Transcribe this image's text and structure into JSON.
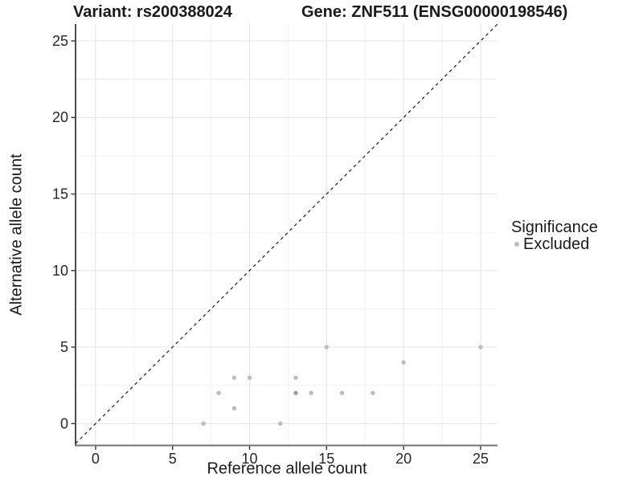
{
  "header": {
    "variant_title": "Variant: rs200388024",
    "gene_title": "Gene: ZNF511 (ENSG00000198546)"
  },
  "axes": {
    "x_label": "Reference allele count",
    "y_label": "Alternative allele count"
  },
  "legend": {
    "title": "Significance",
    "items": [
      {
        "label": "Excluded",
        "color": "#bcbcbc"
      }
    ]
  },
  "style": {
    "background": "#ffffff",
    "grid_major": "#e3e3e3",
    "grid_minor": "#f1f1f1",
    "axis_line_y": "#212121",
    "axis_line_x": "#757575",
    "tick_mark": "#333333",
    "tick_label_color": "#262626",
    "identity_line_color": "#1a1a1a",
    "point_color": "#bcbcbc",
    "point_overlap_color": "#9c9c9c"
  },
  "chart_data": {
    "type": "scatter",
    "title": "Variant: rs200388024   Gene: ZNF511 (ENSG00000198546)",
    "xlabel": "Reference allele count",
    "ylabel": "Alternative allele count",
    "xlim": [
      -1.3,
      26.1
    ],
    "ylim": [
      -1.4,
      26.1
    ],
    "x_ticks": [
      0,
      5,
      10,
      15,
      20,
      25
    ],
    "y_ticks": [
      0,
      5,
      10,
      15,
      20,
      25
    ],
    "x_minor_ticks": [
      2.5,
      7.5,
      12.5,
      17.5,
      22.5
    ],
    "y_minor_ticks": [
      2.5,
      7.5,
      12.5,
      17.5,
      22.5
    ],
    "grid": true,
    "legend_position": "right",
    "identity_line": {
      "style": "dashed",
      "slope": 1,
      "intercept": 0,
      "from": -1.3,
      "to": 26.1
    },
    "series": [
      {
        "name": "Excluded",
        "points": [
          {
            "x": 7,
            "y": 0,
            "n": 1
          },
          {
            "x": 8,
            "y": 2,
            "n": 1
          },
          {
            "x": 9,
            "y": 1,
            "n": 1
          },
          {
            "x": 9,
            "y": 3,
            "n": 1
          },
          {
            "x": 10,
            "y": 3,
            "n": 1
          },
          {
            "x": 12,
            "y": 0,
            "n": 1
          },
          {
            "x": 13,
            "y": 2,
            "n": 2
          },
          {
            "x": 13,
            "y": 3,
            "n": 1
          },
          {
            "x": 14,
            "y": 2,
            "n": 1
          },
          {
            "x": 15,
            "y": 5,
            "n": 1
          },
          {
            "x": 16,
            "y": 2,
            "n": 1
          },
          {
            "x": 18,
            "y": 2,
            "n": 1
          },
          {
            "x": 20,
            "y": 4,
            "n": 1
          },
          {
            "x": 25,
            "y": 5,
            "n": 1
          }
        ]
      }
    ]
  }
}
